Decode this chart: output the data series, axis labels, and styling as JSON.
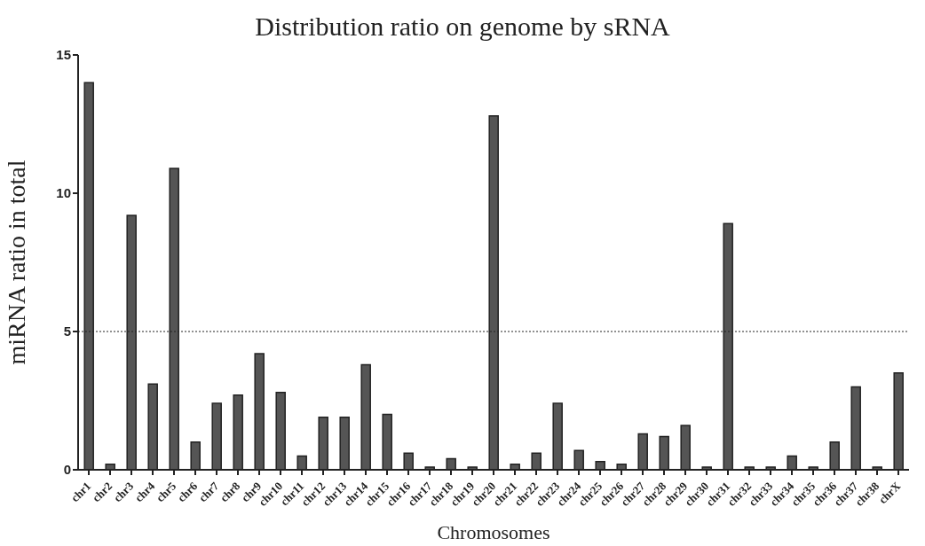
{
  "chart_data": {
    "type": "bar",
    "title": "Distribution ratio on genome by sRNA",
    "xlabel": "Chromosomes",
    "ylabel": "miRNA ratio in total",
    "categories": [
      "chr1",
      "chr2",
      "chr3",
      "chr4",
      "chr5",
      "chr6",
      "chr7",
      "chr8",
      "chr9",
      "chr10",
      "chr11",
      "chr12",
      "chr13",
      "chr14",
      "chr15",
      "chr16",
      "chr17",
      "chr18",
      "chr19",
      "chr20",
      "chr21",
      "chr22",
      "chr23",
      "chr24",
      "chr25",
      "chr26",
      "chr27",
      "chr28",
      "chr29",
      "chr30",
      "chr31",
      "chr32",
      "chr33",
      "chr34",
      "chr35",
      "chr36",
      "chr37",
      "chr38",
      "chrX"
    ],
    "values": [
      14.0,
      0.2,
      9.2,
      3.1,
      10.9,
      1.0,
      2.4,
      2.7,
      4.2,
      2.8,
      0.5,
      1.9,
      1.9,
      3.8,
      2.0,
      0.6,
      0.1,
      0.4,
      0.1,
      12.8,
      0.2,
      0.6,
      2.4,
      0.7,
      0.3,
      0.2,
      1.3,
      1.2,
      1.6,
      0.1,
      8.9,
      0.1,
      0.1,
      0.5,
      0.1,
      1.0,
      3.0,
      0.1,
      3.5
    ],
    "color": "#555555",
    "ylim": [
      0,
      15
    ],
    "yticks": [
      0,
      5,
      10,
      15
    ],
    "ref_lines": [
      {
        "axis": "y",
        "value": 5,
        "label": null,
        "line_style": "dotted"
      }
    ]
  }
}
